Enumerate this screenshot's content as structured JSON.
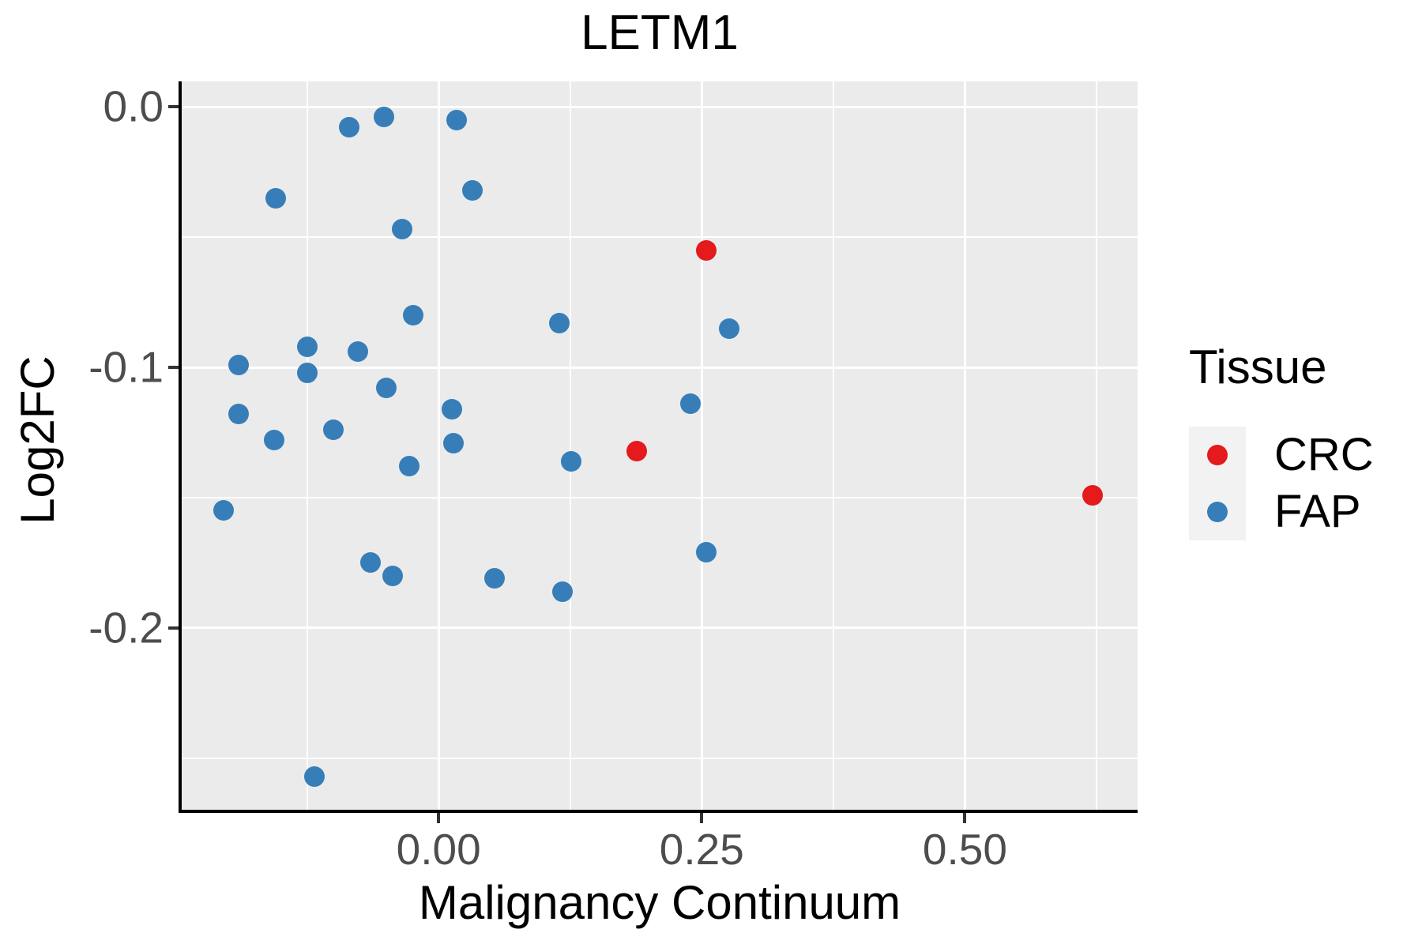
{
  "chart_data": {
    "type": "scatter",
    "title": "LETM1",
    "xlabel": "Malignancy Continuum",
    "ylabel": "Log2FC",
    "legend_title": "Tissue",
    "legend_position": "right",
    "grid": "on",
    "colors": {
      "panel_fill": "#EBEBEB",
      "grid_color": "#FFFFFF",
      "legend_key_fill": "#F2F2F2",
      "axis_line": "#000000",
      "tick_text": "#4D4D4D"
    },
    "xlim": [
      -0.244,
      0.664
    ],
    "ylim": [
      -0.2697,
      0.0097
    ],
    "x_ticks": [
      {
        "value": 0.0,
        "label": "0.00"
      },
      {
        "value": 0.25,
        "label": "0.25"
      },
      {
        "value": 0.5,
        "label": "0.50"
      }
    ],
    "y_ticks": [
      {
        "value": 0.0,
        "label": "0.0"
      },
      {
        "value": -0.1,
        "label": "-0.1"
      },
      {
        "value": -0.2,
        "label": "-0.2"
      }
    ],
    "x_minor_gridlines": [
      -0.125,
      0.125,
      0.375,
      0.625
    ],
    "y_minor_gridlines": [
      -0.05,
      -0.15,
      -0.25
    ],
    "series": [
      {
        "name": "FAP",
        "color": "#377EB8",
        "points": [
          [
            -0.052,
            -0.004
          ],
          [
            0.017,
            -0.005
          ],
          [
            -0.085,
            -0.008
          ],
          [
            0.032,
            -0.032
          ],
          [
            -0.155,
            -0.035
          ],
          [
            -0.035,
            -0.047
          ],
          [
            -0.024,
            -0.08
          ],
          [
            0.115,
            -0.083
          ],
          [
            0.276,
            -0.085
          ],
          [
            -0.125,
            -0.092
          ],
          [
            -0.077,
            -0.094
          ],
          [
            -0.19,
            -0.099
          ],
          [
            -0.125,
            -0.102
          ],
          [
            -0.05,
            -0.108
          ],
          [
            0.239,
            -0.114
          ],
          [
            0.013,
            -0.116
          ],
          [
            -0.19,
            -0.118
          ],
          [
            -0.1,
            -0.124
          ],
          [
            -0.156,
            -0.128
          ],
          [
            0.014,
            -0.129
          ],
          [
            0.126,
            -0.136
          ],
          [
            -0.028,
            -0.138
          ],
          [
            -0.204,
            -0.155
          ],
          [
            0.254,
            -0.171
          ],
          [
            -0.065,
            -0.175
          ],
          [
            -0.044,
            -0.18
          ],
          [
            0.053,
            -0.181
          ],
          [
            0.118,
            -0.186
          ],
          [
            -0.118,
            -0.257
          ]
        ]
      },
      {
        "name": "CRC",
        "color": "#E41A1C",
        "points": [
          [
            0.254,
            -0.055
          ],
          [
            0.188,
            -0.132
          ],
          [
            0.621,
            -0.149
          ]
        ]
      }
    ],
    "legend_order": [
      "CRC",
      "FAP"
    ]
  }
}
